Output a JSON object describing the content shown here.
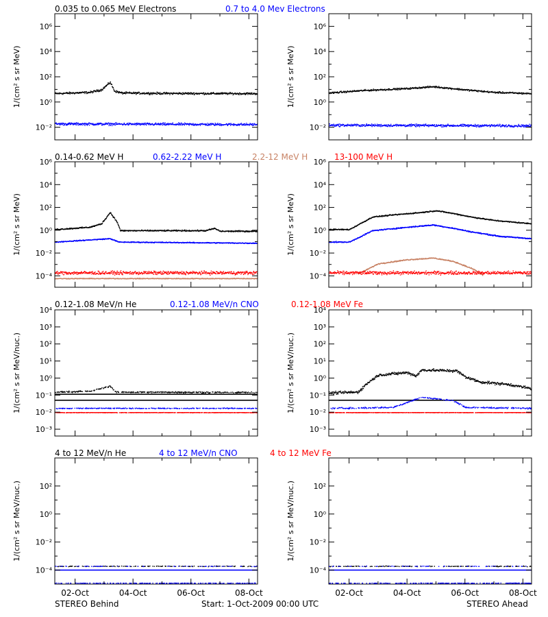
{
  "header_labels": {
    "electrons": [
      {
        "text": "0.035 to 0.065 MeV Electrons",
        "color": "black"
      },
      {
        "text": "0.7 to 4.0 Mev Electrons",
        "color": "blue"
      }
    ],
    "protons": [
      {
        "text": "0.14-0.62 MeV H",
        "color": "black"
      },
      {
        "text": "0.62-2.22 MeV H",
        "color": "blue"
      },
      {
        "text": "2.2-12 MeV H",
        "color": "tan"
      },
      {
        "text": "13-100 MeV H",
        "color": "red"
      }
    ],
    "heavy_low": [
      {
        "text": "0.12-1.08 MeV/n He",
        "color": "black"
      },
      {
        "text": "0.12-1.08 MeV/n CNO",
        "color": "blue"
      },
      {
        "text": "0.12-1.08 MeV Fe",
        "color": "red"
      }
    ],
    "heavy_high": [
      {
        "text": "4 to 12 MeV/n He",
        "color": "black"
      },
      {
        "text": "4 to 12 MeV/n CNO",
        "color": "blue"
      },
      {
        "text": "4 to 12 MeV Fe",
        "color": "red"
      }
    ]
  },
  "footer": {
    "left": "STEREO Behind",
    "center": "Start:   1-Oct-2009 00:00 UTC",
    "right": "STEREO Ahead"
  },
  "colors": {
    "black": "#000000",
    "blue": "#0000ff",
    "tan": "#c88264",
    "red": "#ff0000"
  },
  "chart_data": [
    {
      "id": "behind-electrons",
      "type": "scatter",
      "ylabel": "1/(cm² s sr MeV)",
      "yscale": "log",
      "ylim": [
        -3,
        7
      ],
      "yticks": [
        {
          "exp": -2,
          "label": "10⁻²"
        },
        {
          "exp": 0,
          "label": "10⁰"
        },
        {
          "exp": 2,
          "label": "10²"
        },
        {
          "exp": 4,
          "label": "10⁴"
        },
        {
          "exp": 6,
          "label": "10⁶"
        }
      ],
      "xlim_days": [
        0.3,
        7.3
      ],
      "xticks": [
        "02-Oct",
        "04-Oct",
        "06-Oct",
        "08-Oct"
      ],
      "series": [
        {
          "color": "black",
          "profile": [
            [
              0.3,
              0.7
            ],
            [
              1.5,
              0.8
            ],
            [
              1.9,
              1.0
            ],
            [
              2.2,
              1.6
            ],
            [
              2.35,
              0.9
            ],
            [
              2.6,
              0.75
            ],
            [
              4.0,
              0.72
            ],
            [
              7.3,
              0.7
            ]
          ],
          "noise": 0.1
        },
        {
          "color": "blue",
          "profile": [
            [
              0.3,
              -1.7
            ],
            [
              7.3,
              -1.75
            ]
          ],
          "noise": 0.12
        }
      ]
    },
    {
      "id": "ahead-electrons",
      "type": "scatter",
      "ylabel": "1/(cm² s sr MeV)",
      "yscale": "log",
      "ylim": [
        -3,
        7
      ],
      "yticks": [
        {
          "exp": -2,
          "label": "10⁻²"
        },
        {
          "exp": 0,
          "label": "10⁰"
        },
        {
          "exp": 2,
          "label": "10²"
        },
        {
          "exp": 4,
          "label": "10⁴"
        },
        {
          "exp": 6,
          "label": "10⁶"
        }
      ],
      "xlim_days": [
        0.3,
        7.3
      ],
      "xticks": [
        "02-Oct",
        "04-Oct",
        "06-Oct",
        "08-Oct"
      ],
      "series": [
        {
          "color": "black",
          "profile": [
            [
              0.3,
              0.75
            ],
            [
              1.5,
              0.95
            ],
            [
              3.0,
              1.1
            ],
            [
              3.9,
              1.25
            ],
            [
              5.0,
              1.0
            ],
            [
              6.0,
              0.8
            ],
            [
              7.3,
              0.7
            ]
          ],
          "noise": 0.08
        },
        {
          "color": "blue",
          "profile": [
            [
              0.3,
              -1.8
            ],
            [
              7.3,
              -1.85
            ]
          ],
          "noise": 0.12
        }
      ]
    },
    {
      "id": "behind-protons",
      "type": "scatter",
      "ylabel": "1/(cm² s sr MeV)",
      "yscale": "log",
      "ylim": [
        -5,
        6
      ],
      "yticks": [
        {
          "exp": -4,
          "label": "10⁻⁴"
        },
        {
          "exp": -2,
          "label": "10⁻²"
        },
        {
          "exp": 0,
          "label": "10⁰"
        },
        {
          "exp": 2,
          "label": "10²"
        },
        {
          "exp": 4,
          "label": "10⁴"
        },
        {
          "exp": 6,
          "label": "10⁶"
        }
      ],
      "xlim_days": [
        0.3,
        7.3
      ],
      "xticks": [
        "02-Oct",
        "04-Oct",
        "06-Oct",
        "08-Oct"
      ],
      "series": [
        {
          "color": "black",
          "profile": [
            [
              0.3,
              0.1
            ],
            [
              1.5,
              0.3
            ],
            [
              1.9,
              0.6
            ],
            [
              2.2,
              1.6
            ],
            [
              2.45,
              0.7
            ],
            [
              2.55,
              0.0
            ],
            [
              5.5,
              0.0
            ],
            [
              5.8,
              0.2
            ],
            [
              6.0,
              -0.05
            ],
            [
              7.3,
              -0.05
            ]
          ],
          "noise": 0.07
        },
        {
          "color": "blue",
          "profile": [
            [
              0.3,
              -1.0
            ],
            [
              2.2,
              -0.7
            ],
            [
              2.5,
              -1.0
            ],
            [
              7.3,
              -1.1
            ]
          ],
          "noise": 0.05
        },
        {
          "color": "tan",
          "profile": [
            [
              0.3,
              -4.2
            ],
            [
              7.3,
              -4.2
            ]
          ],
          "noise": 0.04
        },
        {
          "color": "red",
          "profile": [
            [
              0.3,
              -3.7
            ],
            [
              7.3,
              -3.7
            ]
          ],
          "noise": 0.18
        }
      ]
    },
    {
      "id": "ahead-protons",
      "type": "scatter",
      "ylabel": "1/(cm² s sr MeV)",
      "yscale": "log",
      "ylim": [
        -5,
        6
      ],
      "yticks": [
        {
          "exp": -4,
          "label": "10⁻⁴"
        },
        {
          "exp": -2,
          "label": "10⁻²"
        },
        {
          "exp": 0,
          "label": "10⁰"
        },
        {
          "exp": 2,
          "label": "10²"
        },
        {
          "exp": 4,
          "label": "10⁴"
        },
        {
          "exp": 6,
          "label": "10⁶"
        }
      ],
      "xlim_days": [
        0.3,
        7.3
      ],
      "xticks": [
        "02-Oct",
        "04-Oct",
        "06-Oct",
        "08-Oct"
      ],
      "series": [
        {
          "color": "black",
          "profile": [
            [
              0.3,
              0.1
            ],
            [
              1.0,
              0.1
            ],
            [
              1.8,
              1.2
            ],
            [
              2.6,
              1.4
            ],
            [
              3.5,
              1.6
            ],
            [
              4.0,
              1.75
            ],
            [
              4.6,
              1.5
            ],
            [
              5.2,
              1.2
            ],
            [
              6.0,
              0.9
            ],
            [
              7.3,
              0.6
            ]
          ],
          "noise": 0.06
        },
        {
          "color": "blue",
          "profile": [
            [
              0.3,
              -1.0
            ],
            [
              1.0,
              -1.0
            ],
            [
              1.8,
              0.0
            ],
            [
              3.0,
              0.3
            ],
            [
              3.9,
              0.5
            ],
            [
              4.6,
              0.2
            ],
            [
              5.2,
              -0.1
            ],
            [
              6.2,
              -0.5
            ],
            [
              7.3,
              -0.7
            ]
          ],
          "noise": 0.06
        },
        {
          "color": "tan",
          "profile": [
            [
              1.3,
              -3.8
            ],
            [
              2.0,
              -2.9
            ],
            [
              3.0,
              -2.55
            ],
            [
              3.9,
              -2.4
            ],
            [
              4.6,
              -2.7
            ],
            [
              5.3,
              -3.4
            ],
            [
              5.6,
              -3.9
            ]
          ],
          "noise": 0.06
        },
        {
          "color": "red",
          "profile": [
            [
              0.3,
              -3.7
            ],
            [
              7.3,
              -3.7
            ]
          ],
          "noise": 0.18
        }
      ]
    },
    {
      "id": "behind-heavy-low",
      "type": "scatter",
      "ylabel": "1/(cm² s sr MeV/nuc.)",
      "yscale": "log",
      "ylim": [
        -3.4,
        4
      ],
      "yticks": [
        {
          "exp": -3,
          "label": "10⁻³"
        },
        {
          "exp": -2,
          "label": "10⁻²"
        },
        {
          "exp": -1,
          "label": "10⁻¹"
        },
        {
          "exp": 0,
          "label": "10⁰"
        },
        {
          "exp": 1,
          "label": "10¹"
        },
        {
          "exp": 2,
          "label": "10²"
        },
        {
          "exp": 3,
          "label": "10³"
        },
        {
          "exp": 4,
          "label": "10⁴"
        }
      ],
      "xlim_days": [
        0.3,
        7.3
      ],
      "xticks": [
        "02-Oct",
        "04-Oct",
        "06-Oct",
        "08-Oct"
      ],
      "lines": [
        {
          "color": "black",
          "value": -1.3
        },
        {
          "color": "black",
          "value": -0.95
        }
      ],
      "series": [
        {
          "color": "black",
          "profile": [
            [
              0.3,
              -0.8
            ],
            [
              1.5,
              -0.75
            ],
            [
              2.2,
              -0.45
            ],
            [
              2.4,
              -0.8
            ],
            [
              7.3,
              -0.82
            ]
          ],
          "noise": 0.05,
          "sparse": 0.55
        },
        {
          "color": "blue",
          "profile": [
            [
              0.3,
              -1.75
            ],
            [
              7.3,
              -1.75
            ]
          ],
          "noise": 0.03,
          "sparse": 0.5
        },
        {
          "color": "red",
          "profile": [
            [
              0.3,
              -2.0
            ],
            [
              7.3,
              -2.0
            ]
          ],
          "noise": 0.01,
          "sparse": 0.8
        }
      ]
    },
    {
      "id": "ahead-heavy-low",
      "type": "scatter",
      "ylabel": "1/(cm² s sr MeV/nuc.)",
      "yscale": "log",
      "ylim": [
        -3.4,
        4
      ],
      "yticks": [
        {
          "exp": -3,
          "label": "10⁻³"
        },
        {
          "exp": -2,
          "label": "10⁻²"
        },
        {
          "exp": -1,
          "label": "10⁻¹"
        },
        {
          "exp": 0,
          "label": "10⁰"
        },
        {
          "exp": 1,
          "label": "10¹"
        },
        {
          "exp": 2,
          "label": "10²"
        },
        {
          "exp": 3,
          "label": "10³"
        },
        {
          "exp": 4,
          "label": "10⁴"
        }
      ],
      "xlim_days": [
        0.3,
        7.3
      ],
      "xticks": [
        "02-Oct",
        "04-Oct",
        "06-Oct",
        "08-Oct"
      ],
      "lines": [
        {
          "color": "black",
          "value": -1.3
        }
      ],
      "series": [
        {
          "color": "black",
          "profile": [
            [
              0.3,
              -0.85
            ],
            [
              1.3,
              -0.8
            ],
            [
              1.6,
              -0.3
            ],
            [
              2.0,
              0.2
            ],
            [
              3.0,
              0.35
            ],
            [
              3.3,
              0.15
            ],
            [
              3.5,
              0.5
            ],
            [
              4.7,
              0.45
            ],
            [
              5.0,
              0.1
            ],
            [
              5.5,
              -0.2
            ],
            [
              6.5,
              -0.35
            ],
            [
              7.3,
              -0.6
            ]
          ],
          "noise": 0.1
        },
        {
          "color": "blue",
          "profile": [
            [
              0.3,
              -1.75
            ],
            [
              2.5,
              -1.7
            ],
            [
              3.5,
              -1.1
            ],
            [
              4.6,
              -1.3
            ],
            [
              5.0,
              -1.7
            ],
            [
              7.3,
              -1.75
            ]
          ],
          "noise": 0.05,
          "sparse": 0.5
        },
        {
          "color": "red",
          "profile": [
            [
              0.3,
              -2.0
            ],
            [
              7.3,
              -2.0
            ]
          ],
          "noise": 0.01,
          "sparse": 0.8
        }
      ]
    },
    {
      "id": "behind-heavy-high",
      "type": "scatter",
      "ylabel": "1/(cm² s sr MeV/nuc.)",
      "yscale": "log",
      "ylim": [
        -5,
        4
      ],
      "yticks": [
        {
          "exp": -4,
          "label": "10⁻⁴"
        },
        {
          "exp": -2,
          "label": "10⁻²"
        },
        {
          "exp": 0,
          "label": "10⁰"
        },
        {
          "exp": 2,
          "label": "10²"
        }
      ],
      "xlim_days": [
        0.3,
        7.3
      ],
      "xticks": [
        "02-Oct",
        "04-Oct",
        "06-Oct",
        "08-Oct"
      ],
      "lines": [
        {
          "color": "blue",
          "value": -4.0
        }
      ],
      "series": [
        {
          "color": "black",
          "profile": [
            [
              0.3,
              -3.7
            ],
            [
              7.3,
              -3.7
            ]
          ],
          "noise": 0.03,
          "sparse": 0.25
        },
        {
          "color": "blue",
          "profile": [
            [
              0.3,
              -3.7
            ],
            [
              7.3,
              -3.7
            ]
          ],
          "noise": 0.02,
          "sparse": 0.12
        },
        {
          "color": "blue",
          "profile": [
            [
              0.3,
              -4.9
            ],
            [
              7.3,
              -4.9
            ]
          ],
          "noise": 0.01,
          "sparse": 0.3
        }
      ]
    },
    {
      "id": "ahead-heavy-high",
      "type": "scatter",
      "ylabel": "1/(cm² s sr MeV/nuc.)",
      "yscale": "log",
      "ylim": [
        -5,
        4
      ],
      "yticks": [
        {
          "exp": -4,
          "label": "10⁻⁴"
        },
        {
          "exp": -2,
          "label": "10⁻²"
        },
        {
          "exp": 0,
          "label": "10⁰"
        },
        {
          "exp": 2,
          "label": "10²"
        }
      ],
      "xlim_days": [
        0.3,
        7.3
      ],
      "xticks": [
        "02-Oct",
        "04-Oct",
        "06-Oct",
        "08-Oct"
      ],
      "lines": [
        {
          "color": "blue",
          "value": -4.0
        }
      ],
      "series": [
        {
          "color": "black",
          "profile": [
            [
              0.3,
              -3.7
            ],
            [
              7.3,
              -3.7
            ]
          ],
          "noise": 0.03,
          "sparse": 0.25
        },
        {
          "color": "blue",
          "profile": [
            [
              0.3,
              -3.7
            ],
            [
              7.3,
              -3.7
            ]
          ],
          "noise": 0.02,
          "sparse": 0.12
        },
        {
          "color": "blue",
          "profile": [
            [
              0.3,
              -4.9
            ],
            [
              7.3,
              -4.9
            ]
          ],
          "noise": 0.01,
          "sparse": 0.3
        }
      ]
    }
  ]
}
